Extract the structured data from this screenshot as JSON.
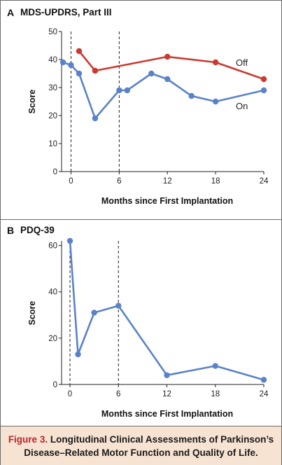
{
  "colors": {
    "on": "#5b82c8",
    "off": "#cb3a30",
    "figure_label": "#c0202a",
    "caption_bg": "#f6e3d2"
  },
  "chart_data": [
    {
      "type": "line",
      "panel": "A",
      "title": "MDS-UPDRS, Part III",
      "xlabel": "Months since First Implantation",
      "ylabel": "Score",
      "xlim": [
        -1,
        24
      ],
      "ylim": [
        0,
        50
      ],
      "xticks": [
        0,
        6,
        12,
        18,
        24
      ],
      "yticks": [
        0,
        10,
        20,
        30,
        40,
        50
      ],
      "vlines": [
        0,
        6
      ],
      "grid": false,
      "series": [
        {
          "name": "Off",
          "color": "#cb3a30",
          "x": [
            1,
            3,
            12,
            18,
            24
          ],
          "y": [
            43,
            36,
            41,
            39,
            33
          ]
        },
        {
          "name": "On",
          "color": "#5b82c8",
          "x": [
            -1,
            0,
            1,
            3,
            6,
            7,
            10,
            12,
            15,
            18,
            24
          ],
          "y": [
            39,
            38,
            35,
            19,
            29,
            29,
            35,
            33,
            27,
            25,
            29
          ]
        }
      ]
    },
    {
      "type": "line",
      "panel": "B",
      "title": "PDQ-39",
      "xlabel": "Months since First Implantation",
      "ylabel": "Score",
      "xlim": [
        0,
        24
      ],
      "ylim": [
        0,
        62
      ],
      "xticks": [
        0,
        6,
        12,
        18,
        24
      ],
      "yticks": [
        0,
        20,
        40,
        60
      ],
      "vlines": [
        0,
        6
      ],
      "grid": false,
      "series": [
        {
          "color": "#5b82c8",
          "x": [
            0,
            1,
            3,
            6,
            12,
            18,
            24
          ],
          "y": [
            62,
            13,
            31,
            34,
            4,
            8,
            2
          ]
        }
      ]
    }
  ],
  "caption": {
    "figure_label": "Figure 3.",
    "line1": "Longitudinal Clinical Assessments of Parkinson’s",
    "line2": "Disease–Related Motor Function and Quality of Life."
  }
}
